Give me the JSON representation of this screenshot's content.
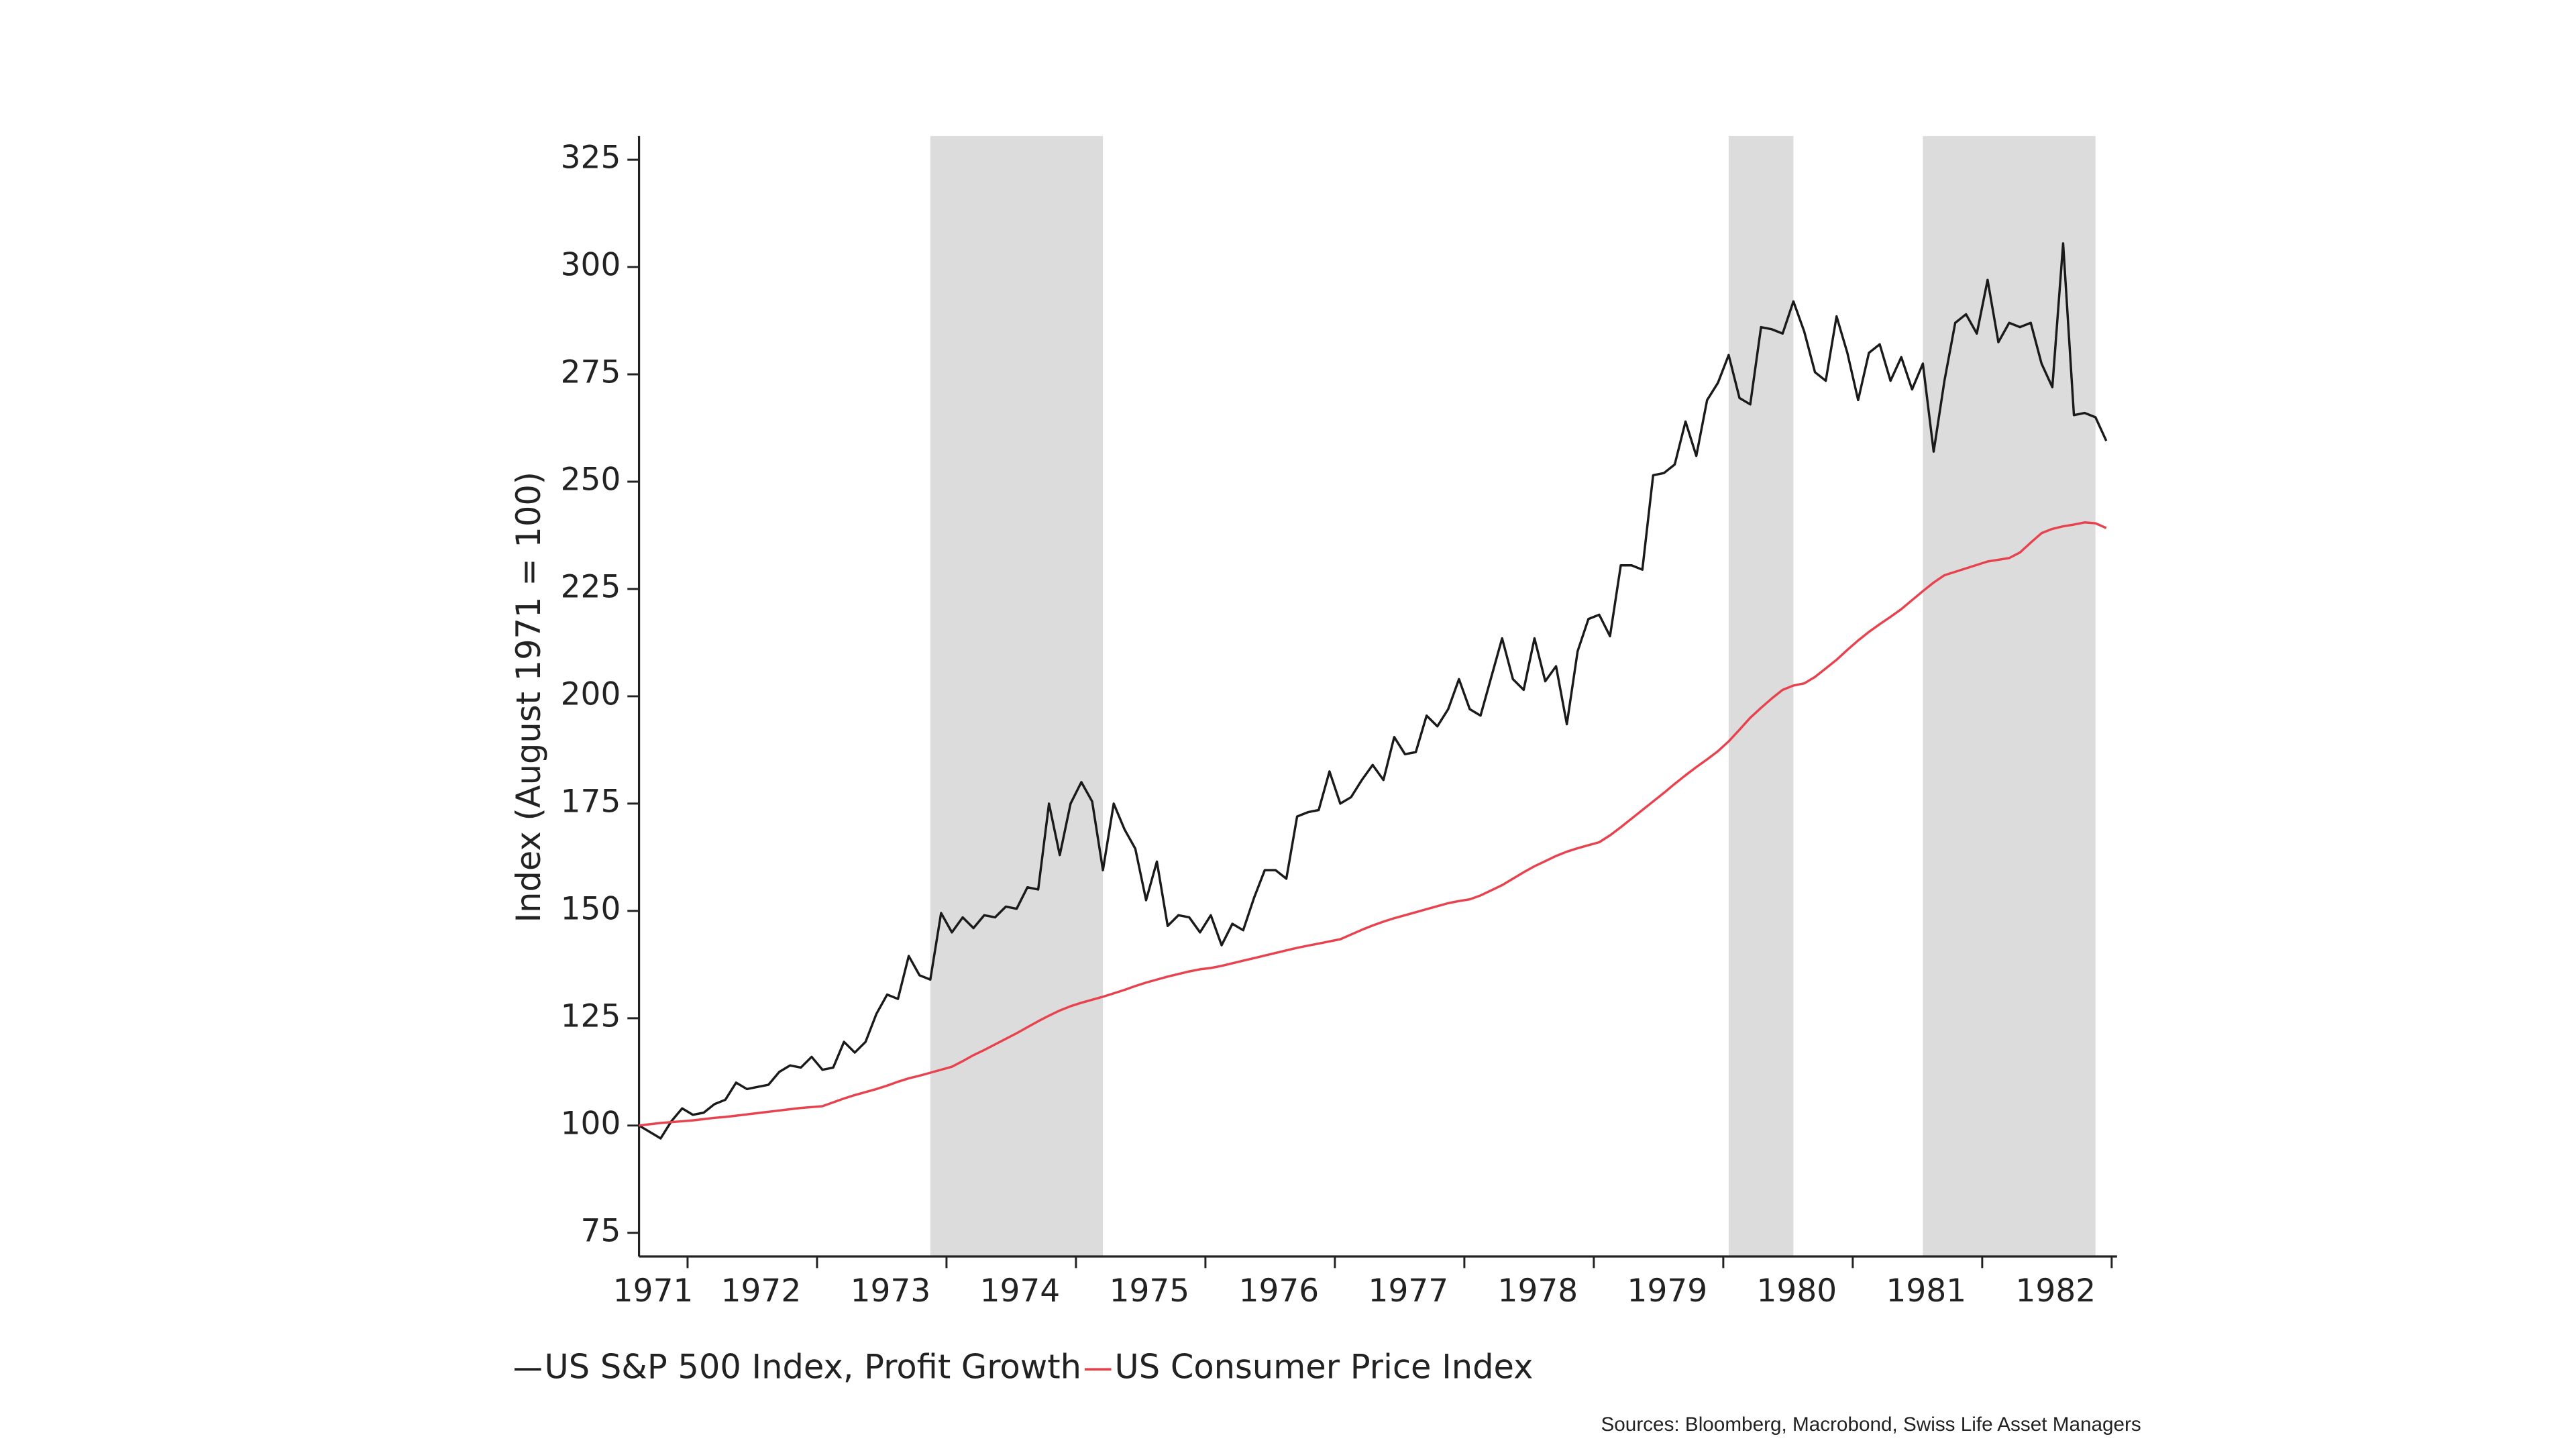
{
  "chart_data": {
    "type": "line",
    "y_label": "Index (August 1971 = 100)",
    "source": "Sources: Bloomberg, Macrobond, Swiss Life Asset Managers",
    "categories": [
      null,
      "1971",
      null,
      null,
      null,
      null,
      null,
      null,
      null,
      null,
      null,
      "1972",
      null,
      null,
      null,
      null,
      null,
      null,
      null,
      null,
      null,
      null,
      null,
      "1973",
      null,
      null,
      null,
      null,
      null,
      null,
      null,
      null,
      null,
      null,
      null,
      "1974",
      null,
      null,
      null,
      null,
      null,
      null,
      null,
      null,
      null,
      null,
      null,
      "1975",
      null,
      null,
      null,
      null,
      null,
      null,
      null,
      null,
      null,
      null,
      null,
      "1976",
      null,
      null,
      null,
      null,
      null,
      null,
      null,
      null,
      null,
      null,
      null,
      "1977",
      null,
      null,
      null,
      null,
      null,
      null,
      null,
      null,
      null,
      null,
      null,
      "1978",
      null,
      null,
      null,
      null,
      null,
      null,
      null,
      null,
      null,
      null,
      null,
      "1979",
      null,
      null,
      null,
      null,
      null,
      null,
      null,
      null,
      null,
      null,
      null,
      "1980",
      null,
      null,
      null,
      null,
      null,
      null,
      null,
      null,
      null,
      null,
      null,
      "1981",
      null,
      null,
      null,
      null,
      null,
      null,
      null,
      null,
      null,
      null,
      null,
      "1982",
      null,
      null,
      null,
      null,
      null
    ],
    "series": [
      {
        "name": "US S&P 500 Index, Profit Growth",
        "color": "#1a1a1a",
        "values": [
          100,
          98.5,
          97,
          101,
          104,
          102.5,
          103,
          105,
          106,
          110,
          108.5,
          109,
          109.5,
          112.5,
          114,
          113.5,
          116,
          113,
          113.5,
          119.5,
          117,
          119.5,
          126,
          130.5,
          129.5,
          139.5,
          135,
          134,
          149.5,
          145,
          148.5,
          146,
          149,
          148.5,
          151,
          150.5,
          155.5,
          155,
          175,
          163,
          175,
          180,
          175.5,
          159.5,
          175,
          169,
          164.5,
          152.5,
          161.5,
          146.5,
          149,
          148.5,
          145,
          149,
          142,
          147,
          145.5,
          153,
          159.5,
          159.5,
          157.5,
          172,
          173,
          173.5,
          182.5,
          175,
          176.5,
          180.5,
          184,
          180.5,
          190.5,
          186.5,
          187,
          195.5,
          193,
          197,
          204,
          197,
          195.5,
          204.5,
          213.5,
          204,
          201.5,
          213.5,
          203.5,
          207,
          193.5,
          210.5,
          218,
          219,
          214,
          230.5,
          230.5,
          229.5,
          251.5,
          252,
          254,
          264,
          256,
          269,
          273,
          279.5,
          269.5,
          268,
          286,
          285.5,
          284.5,
          292,
          285,
          275.5,
          273.5,
          288.5,
          280,
          269,
          280,
          282,
          273.5,
          279,
          271.5,
          277.5,
          257,
          273.5,
          287,
          289,
          284.5,
          297,
          282.5,
          287,
          286,
          287,
          277.5,
          272,
          305.5,
          265.5,
          266,
          265,
          259.5
        ]
      },
      {
        "name": "US Consumer Price Index",
        "color": "#e8424e",
        "values": [
          100,
          100.3,
          100.6,
          100.8,
          101.0,
          101.2,
          101.5,
          101.8,
          102.0,
          102.3,
          102.6,
          102.9,
          103.2,
          103.5,
          103.8,
          104.1,
          104.3,
          104.5,
          105.4,
          106.3,
          107.1,
          107.8,
          108.5,
          109.3,
          110.2,
          111.0,
          111.6,
          112.3,
          113.0,
          113.7,
          115.0,
          116.4,
          117.6,
          118.9,
          120.2,
          121.5,
          122.9,
          124.3,
          125.6,
          126.8,
          127.8,
          128.6,
          129.3,
          130.0,
          130.8,
          131.6,
          132.5,
          133.3,
          134.0,
          134.7,
          135.3,
          135.9,
          136.4,
          136.7,
          137.2,
          137.8,
          138.4,
          139.0,
          139.6,
          140.2,
          140.8,
          141.4,
          141.9,
          142.4,
          142.9,
          143.4,
          144.5,
          145.6,
          146.6,
          147.5,
          148.3,
          149.0,
          149.7,
          150.4,
          151.1,
          151.8,
          152.3,
          152.7,
          153.6,
          154.8,
          156.0,
          157.5,
          159.0,
          160.4,
          161.6,
          162.8,
          163.8,
          164.6,
          165.3,
          166.0,
          167.6,
          169.5,
          171.5,
          173.5,
          175.5,
          177.5,
          179.6,
          181.6,
          183.5,
          185.3,
          187.2,
          189.5,
          192.2,
          195.0,
          197.3,
          199.5,
          201.5,
          202.5,
          203.0,
          204.5,
          206.5,
          208.5,
          210.8,
          213.0,
          215.0,
          216.8,
          218.5,
          220.3,
          222.4,
          224.5,
          226.5,
          228.2,
          229.0,
          229.8,
          230.6,
          231.4,
          231.8,
          232.2,
          233.5,
          235.8,
          238.0,
          239.0,
          239.6,
          240.0,
          240.5,
          240.3,
          239.2
        ]
      }
    ],
    "shaded_periods": [
      [
        27,
        43
      ],
      [
        101,
        107
      ],
      [
        119,
        135
      ]
    ],
    "shade_color": "#dcdcdc",
    "ylim": [
      69.5,
      330.5
    ],
    "yticks": [
      75,
      100,
      125,
      150,
      175,
      200,
      225,
      250,
      275,
      300,
      325
    ]
  }
}
